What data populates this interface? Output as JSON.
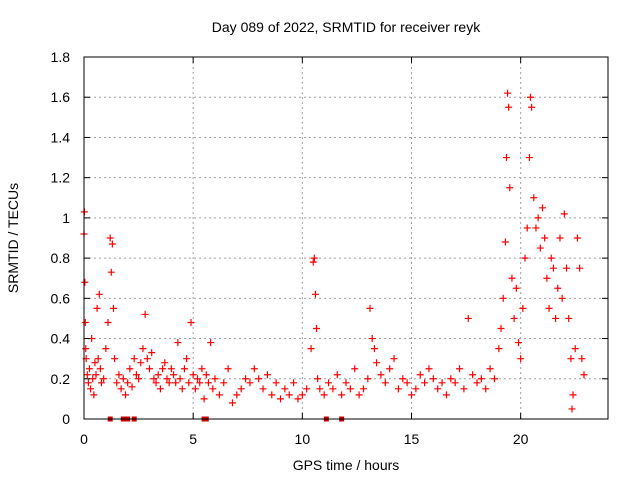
{
  "chart_data": {
    "type": "scatter",
    "title": "Day 089 of 2022, SRMTID for receiver reyk",
    "xlabel": "GPS time / hours",
    "ylabel": "SRMTID / TECUs",
    "xlim": [
      0,
      24
    ],
    "ylim": [
      0,
      1.8
    ],
    "xticks": [
      0,
      5,
      10,
      15,
      20
    ],
    "xtick_labels": [
      "0",
      "5",
      "10",
      "15",
      "20"
    ],
    "yticks": [
      0,
      0.2,
      0.4,
      0.6,
      0.8,
      1.0,
      1.2,
      1.4,
      1.6,
      1.8
    ],
    "ytick_labels": [
      "0",
      "0.2",
      "0.4",
      "0.6",
      "0.8",
      "1",
      "1.2",
      "1.4",
      "1.6",
      "1.8"
    ],
    "grid": true,
    "marker": "plus",
    "color": "#ff0000",
    "gap_marker_color": "#cc0000",
    "gap_markers_x": [
      1.2,
      1.8,
      2.0,
      2.3,
      5.5,
      5.6,
      11.1,
      11.8
    ],
    "series": [
      {
        "name": "SRMTID",
        "points": [
          [
            0.0,
            0.92
          ],
          [
            0.02,
            1.03
          ],
          [
            0.04,
            0.68
          ],
          [
            0.06,
            0.48
          ],
          [
            0.08,
            0.35
          ],
          [
            0.1,
            0.3
          ],
          [
            0.15,
            0.22
          ],
          [
            0.2,
            0.18
          ],
          [
            0.25,
            0.25
          ],
          [
            0.3,
            0.15
          ],
          [
            0.35,
            0.4
          ],
          [
            0.4,
            0.2
          ],
          [
            0.45,
            0.12
          ],
          [
            0.5,
            0.28
          ],
          [
            0.55,
            0.22
          ],
          [
            0.6,
            0.55
          ],
          [
            0.65,
            0.3
          ],
          [
            0.7,
            0.62
          ],
          [
            0.75,
            0.25
          ],
          [
            0.8,
            0.18
          ],
          [
            0.9,
            0.2
          ],
          [
            1.0,
            0.35
          ],
          [
            1.1,
            0.48
          ],
          [
            1.2,
            0.9
          ],
          [
            1.25,
            0.73
          ],
          [
            1.3,
            0.87
          ],
          [
            1.35,
            0.55
          ],
          [
            1.4,
            0.3
          ],
          [
            1.5,
            0.18
          ],
          [
            1.6,
            0.22
          ],
          [
            1.7,
            0.15
          ],
          [
            1.8,
            0.2
          ],
          [
            1.9,
            0.12
          ],
          [
            2.0,
            0.18
          ],
          [
            2.1,
            0.25
          ],
          [
            2.2,
            0.16
          ],
          [
            2.3,
            0.3
          ],
          [
            2.4,
            0.22
          ],
          [
            2.5,
            0.2
          ],
          [
            2.6,
            0.28
          ],
          [
            2.7,
            0.35
          ],
          [
            2.8,
            0.52
          ],
          [
            2.9,
            0.3
          ],
          [
            3.0,
            0.25
          ],
          [
            3.1,
            0.33
          ],
          [
            3.2,
            0.2
          ],
          [
            3.3,
            0.18
          ],
          [
            3.4,
            0.22
          ],
          [
            3.5,
            0.15
          ],
          [
            3.6,
            0.25
          ],
          [
            3.7,
            0.28
          ],
          [
            3.8,
            0.2
          ],
          [
            3.9,
            0.18
          ],
          [
            4.0,
            0.25
          ],
          [
            4.1,
            0.22
          ],
          [
            4.2,
            0.18
          ],
          [
            4.3,
            0.38
          ],
          [
            4.4,
            0.2
          ],
          [
            4.5,
            0.15
          ],
          [
            4.6,
            0.25
          ],
          [
            4.7,
            0.3
          ],
          [
            4.8,
            0.18
          ],
          [
            4.9,
            0.48
          ],
          [
            5.0,
            0.22
          ],
          [
            5.1,
            0.15
          ],
          [
            5.2,
            0.2
          ],
          [
            5.3,
            0.18
          ],
          [
            5.4,
            0.25
          ],
          [
            5.5,
            0.1
          ],
          [
            5.6,
            0.22
          ],
          [
            5.7,
            0.18
          ],
          [
            5.8,
            0.38
          ],
          [
            5.9,
            0.15
          ],
          [
            6.0,
            0.2
          ],
          [
            6.2,
            0.12
          ],
          [
            6.4,
            0.18
          ],
          [
            6.6,
            0.25
          ],
          [
            6.8,
            0.08
          ],
          [
            7.0,
            0.12
          ],
          [
            7.2,
            0.15
          ],
          [
            7.4,
            0.2
          ],
          [
            7.6,
            0.18
          ],
          [
            7.8,
            0.25
          ],
          [
            8.0,
            0.2
          ],
          [
            8.2,
            0.15
          ],
          [
            8.4,
            0.22
          ],
          [
            8.6,
            0.12
          ],
          [
            8.8,
            0.18
          ],
          [
            9.0,
            0.1
          ],
          [
            9.2,
            0.15
          ],
          [
            9.4,
            0.12
          ],
          [
            9.6,
            0.18
          ],
          [
            9.8,
            0.1
          ],
          [
            10.0,
            0.12
          ],
          [
            10.2,
            0.15
          ],
          [
            10.4,
            0.35
          ],
          [
            10.5,
            0.78
          ],
          [
            10.55,
            0.8
          ],
          [
            10.6,
            0.62
          ],
          [
            10.65,
            0.45
          ],
          [
            10.7,
            0.2
          ],
          [
            10.8,
            0.15
          ],
          [
            11.0,
            0.12
          ],
          [
            11.2,
            0.18
          ],
          [
            11.4,
            0.15
          ],
          [
            11.6,
            0.22
          ],
          [
            11.8,
            0.12
          ],
          [
            12.0,
            0.18
          ],
          [
            12.2,
            0.15
          ],
          [
            12.4,
            0.25
          ],
          [
            12.6,
            0.12
          ],
          [
            12.8,
            0.15
          ],
          [
            13.0,
            0.2
          ],
          [
            13.1,
            0.55
          ],
          [
            13.2,
            0.4
          ],
          [
            13.3,
            0.35
          ],
          [
            13.4,
            0.28
          ],
          [
            13.6,
            0.22
          ],
          [
            13.8,
            0.18
          ],
          [
            14.0,
            0.25
          ],
          [
            14.2,
            0.3
          ],
          [
            14.4,
            0.15
          ],
          [
            14.6,
            0.2
          ],
          [
            14.8,
            0.18
          ],
          [
            15.0,
            0.12
          ],
          [
            15.2,
            0.15
          ],
          [
            15.4,
            0.22
          ],
          [
            15.6,
            0.18
          ],
          [
            15.8,
            0.25
          ],
          [
            16.0,
            0.2
          ],
          [
            16.2,
            0.15
          ],
          [
            16.4,
            0.18
          ],
          [
            16.6,
            0.12
          ],
          [
            16.8,
            0.2
          ],
          [
            17.0,
            0.18
          ],
          [
            17.2,
            0.25
          ],
          [
            17.4,
            0.15
          ],
          [
            17.6,
            0.5
          ],
          [
            17.8,
            0.22
          ],
          [
            18.0,
            0.18
          ],
          [
            18.2,
            0.2
          ],
          [
            18.4,
            0.15
          ],
          [
            18.6,
            0.25
          ],
          [
            18.8,
            0.2
          ],
          [
            19.0,
            0.35
          ],
          [
            19.1,
            0.45
          ],
          [
            19.2,
            0.6
          ],
          [
            19.3,
            0.88
          ],
          [
            19.35,
            1.3
          ],
          [
            19.4,
            1.62
          ],
          [
            19.45,
            1.55
          ],
          [
            19.5,
            1.15
          ],
          [
            19.6,
            0.7
          ],
          [
            19.7,
            0.5
          ],
          [
            19.8,
            0.65
          ],
          [
            19.9,
            0.38
          ],
          [
            20.0,
            0.3
          ],
          [
            20.1,
            0.55
          ],
          [
            20.2,
            0.8
          ],
          [
            20.3,
            0.95
          ],
          [
            20.4,
            1.3
          ],
          [
            20.45,
            1.6
          ],
          [
            20.5,
            1.55
          ],
          [
            20.6,
            1.1
          ],
          [
            20.7,
            0.95
          ],
          [
            20.8,
            1.0
          ],
          [
            20.9,
            0.85
          ],
          [
            21.0,
            1.05
          ],
          [
            21.1,
            0.9
          ],
          [
            21.2,
            0.7
          ],
          [
            21.3,
            0.55
          ],
          [
            21.4,
            0.8
          ],
          [
            21.5,
            0.75
          ],
          [
            21.6,
            0.5
          ],
          [
            21.7,
            0.65
          ],
          [
            21.8,
            0.9
          ],
          [
            21.9,
            0.6
          ],
          [
            22.0,
            1.02
          ],
          [
            22.1,
            0.75
          ],
          [
            22.2,
            0.5
          ],
          [
            22.3,
            0.3
          ],
          [
            22.35,
            0.05
          ],
          [
            22.4,
            0.12
          ],
          [
            22.5,
            0.35
          ],
          [
            22.6,
            0.9
          ],
          [
            22.7,
            0.75
          ],
          [
            22.8,
            0.3
          ],
          [
            22.9,
            0.22
          ]
        ]
      }
    ]
  }
}
